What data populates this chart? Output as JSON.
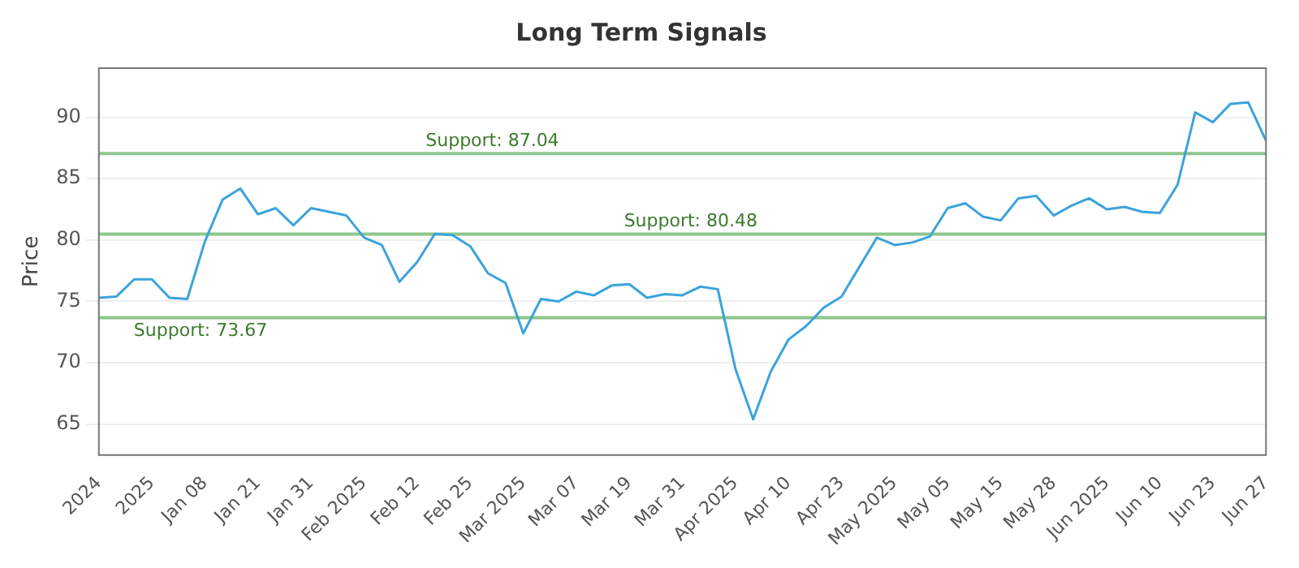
{
  "chart_data": {
    "type": "line",
    "title": "Long Term Signals",
    "ylabel": "Price",
    "categories": [
      "2024",
      null,
      null,
      "2025",
      null,
      null,
      "Jan 08",
      null,
      null,
      "Jan 21",
      null,
      null,
      "Jan 31",
      null,
      null,
      "Feb 2025",
      null,
      null,
      "Feb 12",
      null,
      null,
      "Feb 25",
      null,
      null,
      "Mar 2025",
      null,
      null,
      "Mar 07",
      null,
      null,
      "Mar 19",
      null,
      null,
      "Mar 31",
      null,
      null,
      "Apr 2025",
      null,
      null,
      "Apr 10",
      null,
      null,
      "Apr 23",
      null,
      null,
      "May 2025",
      null,
      null,
      "May 05",
      null,
      null,
      "May 15",
      null,
      null,
      "May 28",
      null,
      null,
      "Jun 2025",
      null,
      null,
      "Jun 10",
      null,
      null,
      "Jun 23",
      null,
      null,
      "Jun 27"
    ],
    "series": [
      {
        "color": "#3ba3dc",
        "values": [
          75.3,
          75.4,
          76.8,
          76.8,
          75.3,
          75.2,
          79.9,
          83.3,
          84.2,
          82.1,
          82.6,
          81.2,
          82.6,
          82.3,
          82.0,
          80.2,
          79.6,
          76.6,
          78.2,
          80.5,
          80.4,
          79.5,
          77.3,
          76.5,
          72.4,
          75.2,
          75.0,
          75.8,
          75.5,
          76.3,
          76.4,
          75.3,
          75.6,
          75.5,
          76.2,
          76.0,
          69.5,
          65.4,
          69.3,
          71.9,
          73.0,
          74.5,
          75.4,
          77.8,
          80.2,
          79.6,
          79.8,
          80.3,
          82.6,
          83.0,
          81.9,
          81.6,
          83.4,
          83.6,
          82.0,
          82.8,
          83.4,
          82.5,
          82.7,
          82.3,
          82.2,
          84.5,
          90.4,
          89.6,
          91.1,
          91.2,
          88.1
        ]
      }
    ],
    "ylim": [
      62.5,
      94
    ],
    "yticks": [
      65,
      70,
      75,
      80,
      85,
      90
    ],
    "grid": "y",
    "marker": "none",
    "line_style": "solid",
    "ref_lines": [
      {
        "axis": "y",
        "value": 87.04,
        "label": "Support: 87.04",
        "color": "#8cc68c"
      },
      {
        "axis": "y",
        "value": 80.48,
        "label": "Support: 80.48",
        "color": "#8cc68c"
      },
      {
        "axis": "y",
        "value": 73.67,
        "label": "Support: 73.67",
        "color": "#8cc68c"
      }
    ]
  }
}
